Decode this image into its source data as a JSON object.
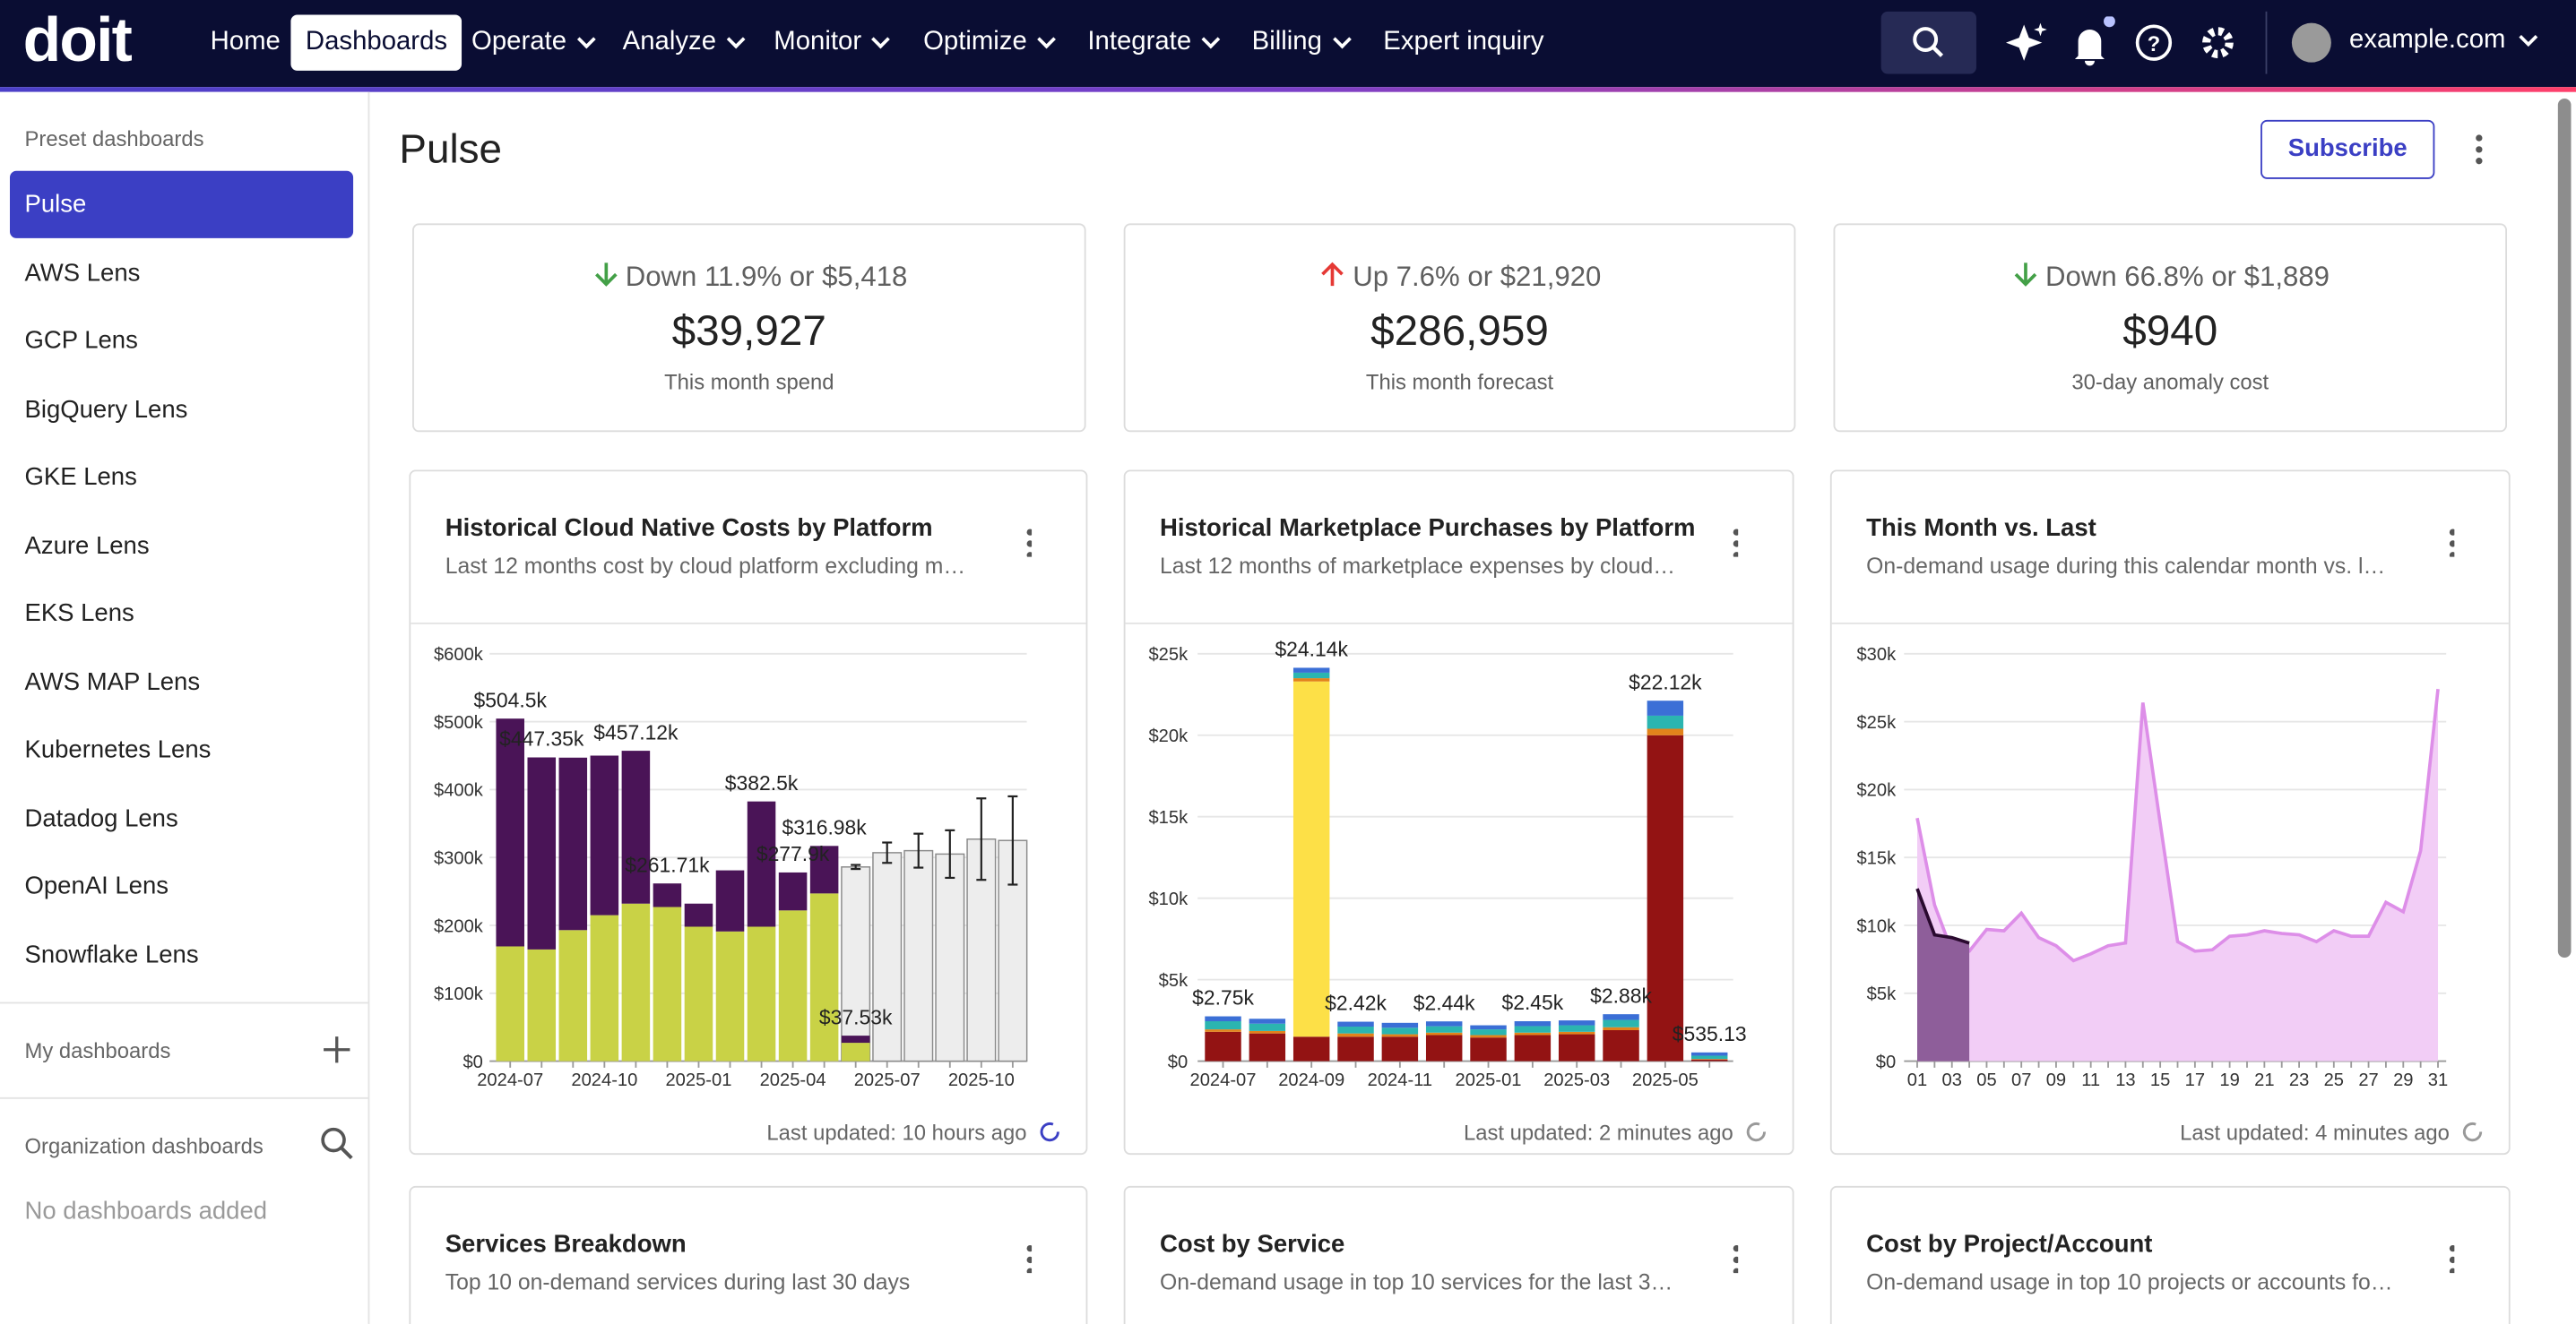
{
  "nav": {
    "logo": "doit",
    "items": [
      "Home",
      "Dashboards",
      "Operate",
      "Analyze",
      "Monitor",
      "Optimize",
      "Integrate",
      "Billing",
      "Expert inquiry"
    ],
    "active": 1
  },
  "account": "example.com",
  "sidebar": {
    "preset_title": "Preset dashboards",
    "preset": [
      "Pulse",
      "AWS Lens",
      "GCP Lens",
      "BigQuery Lens",
      "GKE Lens",
      "Azure Lens",
      "EKS Lens",
      "AWS MAP Lens",
      "Kubernetes Lens",
      "Datadog Lens",
      "OpenAI Lens",
      "Snowflake Lens"
    ],
    "active": 0,
    "my_title": "My dashboards",
    "org_title": "Organization dashboards",
    "org_empty": "No dashboards added"
  },
  "page": {
    "title": "Pulse",
    "subscribe": "Subscribe"
  },
  "kpis": [
    {
      "change": "Down 11.9% or $5,418",
      "value": "$39,927",
      "label": "This month spend",
      "trend": "down"
    },
    {
      "change": "Up 7.6% or $21,920",
      "value": "$286,959",
      "label": "This month forecast",
      "trend": "up"
    },
    {
      "change": "Down 66.8% or $1,889",
      "value": "$940",
      "label": "30-day anomaly cost",
      "trend": "down"
    }
  ],
  "widgets": [
    {
      "title": "Historical Cloud Native Costs by Platform",
      "subtitle": "Last 12 months cost by cloud platform excluding m…",
      "updated": "Last updated: 10 hours ago",
      "chart_data": {
        "type": "bar",
        "stacked": true,
        "categories": [
          "2024-07",
          null,
          null,
          "2024-10",
          null,
          null,
          "2025-01",
          null,
          null,
          "2025-04",
          null,
          null,
          "2025-07",
          null,
          null,
          "2025-10",
          null
        ],
        "series": [
          {
            "color": "#c9d246",
            "values": [
              169000,
              164500,
              193000,
              215000,
              232000,
              227000,
              198000,
              191000,
              198000,
              222000,
              247000,
              27000,
              null,
              null,
              null,
              null,
              null
            ]
          },
          {
            "color": "#4a1457",
            "values": [
              335500,
              282850,
              254000,
              235000,
              225120,
              34710,
              34000,
              90000,
              184500,
              55900,
              69980,
              10530,
              null,
              null,
              null,
              null,
              null
            ]
          }
        ],
        "forecast": {
          "color": "#ededed",
          "stroke": "#8a8a8a",
          "values": [
            null,
            null,
            null,
            null,
            null,
            null,
            null,
            null,
            null,
            null,
            null,
            286000,
            307000,
            310000,
            305000,
            327000,
            325000
          ],
          "errors": [
            null,
            null,
            null,
            null,
            null,
            null,
            null,
            null,
            null,
            null,
            null,
            3000,
            15000,
            25000,
            35000,
            60000,
            65000
          ]
        },
        "total_values": [
          504500,
          447350,
          null,
          null,
          457120,
          261710,
          null,
          null,
          382500,
          277900,
          316980,
          37530,
          null,
          null,
          null,
          null,
          null
        ],
        "total_labels": [
          "$504.5k",
          "$447.35k",
          null,
          null,
          "$457.12k",
          "$261.71k",
          null,
          null,
          "$382.5k",
          "$277.9k",
          "$316.98k",
          "$37.53k",
          null,
          null,
          null,
          null,
          null
        ],
        "ylim": [
          0,
          600000
        ],
        "yticks": [
          {
            "value": 0,
            "label": "$0"
          },
          {
            "value": 100000,
            "label": "$100k"
          },
          {
            "value": 200000,
            "label": "$200k"
          },
          {
            "value": 300000,
            "label": "$300k"
          },
          {
            "value": 400000,
            "label": "$400k"
          },
          {
            "value": 500000,
            "label": "$500k"
          },
          {
            "value": 600000,
            "label": "$600k"
          }
        ],
        "grid": true
      }
    },
    {
      "title": "Historical Marketplace Purchases by Platform",
      "subtitle": "Last 12 months of marketplace expenses by cloud…",
      "updated": "Last updated: 2 minutes ago",
      "chart_data": {
        "type": "bar",
        "stacked": true,
        "categories": [
          "2024-07",
          null,
          "2024-09",
          null,
          "2024-11",
          null,
          "2025-01",
          null,
          "2025-03",
          null,
          "2025-05",
          null
        ],
        "series": [
          {
            "color": "#931313",
            "values": [
              1800,
              1700,
              1500,
              1500,
              1500,
              1600,
              1450,
              1600,
              1650,
              1900,
              20000,
              100
            ]
          },
          {
            "color": "#fde047",
            "values": [
              0,
              0,
              21800,
              0,
              0,
              0,
              0,
              0,
              0,
              0,
              0,
              0
            ]
          },
          {
            "color": "#e2831b",
            "values": [
              150,
              150,
              200,
              200,
              150,
              150,
              150,
              150,
              150,
              180,
              400,
              35.13
            ]
          },
          {
            "color": "#2bb5b0",
            "values": [
              500,
              450,
              340,
              420,
              400,
              390,
              350,
              400,
              400,
              450,
              800,
              200
            ]
          },
          {
            "color": "#3b6fd6",
            "values": [
              300,
              300,
              300,
              300,
              300,
              300,
              250,
              300,
              300,
              350,
              920,
              200
            ]
          }
        ],
        "total_values": [
          2750,
          null,
          24140,
          2420,
          null,
          2440,
          null,
          2450,
          null,
          2880,
          22120,
          535.13
        ],
        "total_labels": [
          "$2.75k",
          null,
          "$24.14k",
          "$2.42k",
          null,
          "$2.44k",
          null,
          "$2.45k",
          null,
          "$2.88k",
          "$22.12k",
          "$535.13"
        ],
        "ylim": [
          0,
          25000
        ],
        "yticks": [
          {
            "value": 0,
            "label": "$0"
          },
          {
            "value": 5000,
            "label": "$5k"
          },
          {
            "value": 10000,
            "label": "$10k"
          },
          {
            "value": 15000,
            "label": "$15k"
          },
          {
            "value": 20000,
            "label": "$20k"
          },
          {
            "value": 25000,
            "label": "$25k"
          }
        ],
        "grid": true
      }
    },
    {
      "title": "This Month vs. Last",
      "subtitle": "On-demand usage during this calendar month vs. l…",
      "updated": "Last updated: 4 minutes ago",
      "chart_data": {
        "type": "line",
        "area": true,
        "categories": [
          "01",
          null,
          "03",
          null,
          "05",
          null,
          "07",
          null,
          "09",
          null,
          "11",
          null,
          "13",
          null,
          "15",
          null,
          "17",
          null,
          "19",
          null,
          "21",
          null,
          "23",
          null,
          "25",
          null,
          "27",
          null,
          "29",
          null,
          "31"
        ],
        "series": [
          {
            "color": "#dd8ee8",
            "fill": "#f2cdf6",
            "values": [
              17900,
              11500,
              8100,
              8100,
              9700,
              9600,
              10900,
              9100,
              8500,
              7400,
              7900,
              8500,
              8700,
              26400,
              17500,
              8800,
              8100,
              8200,
              9200,
              9300,
              9600,
              9400,
              9300,
              8800,
              9600,
              9200,
              9200,
              11700,
              11000,
              15500,
              27400
            ]
          },
          {
            "color": "#2a0a2f",
            "fill": "#8e5e9a",
            "values": [
              12700,
              9300,
              9100,
              8700,
              null,
              null,
              null,
              null,
              null,
              null,
              null,
              null,
              null,
              null,
              null,
              null,
              null,
              null,
              null,
              null,
              null,
              null,
              null,
              null,
              null,
              null,
              null,
              null,
              null,
              null,
              null
            ]
          }
        ],
        "ylim": [
          0,
          30000
        ],
        "yticks": [
          {
            "value": 0,
            "label": "$0"
          },
          {
            "value": 5000,
            "label": "$5k"
          },
          {
            "value": 10000,
            "label": "$10k"
          },
          {
            "value": 15000,
            "label": "$15k"
          },
          {
            "value": 20000,
            "label": "$20k"
          },
          {
            "value": 25000,
            "label": "$25k"
          },
          {
            "value": 30000,
            "label": "$30k"
          }
        ],
        "grid": true
      }
    }
  ],
  "bottom_widgets": [
    {
      "title": "Services Breakdown",
      "subtitle": "Top 10 on-demand services during last 30 days"
    },
    {
      "title": "Cost by Service",
      "subtitle": "On-demand usage in top 10 services for the last 3…"
    },
    {
      "title": "Cost by Project/Account",
      "subtitle": "On-demand usage in top 10 projects or accounts fo…"
    }
  ]
}
